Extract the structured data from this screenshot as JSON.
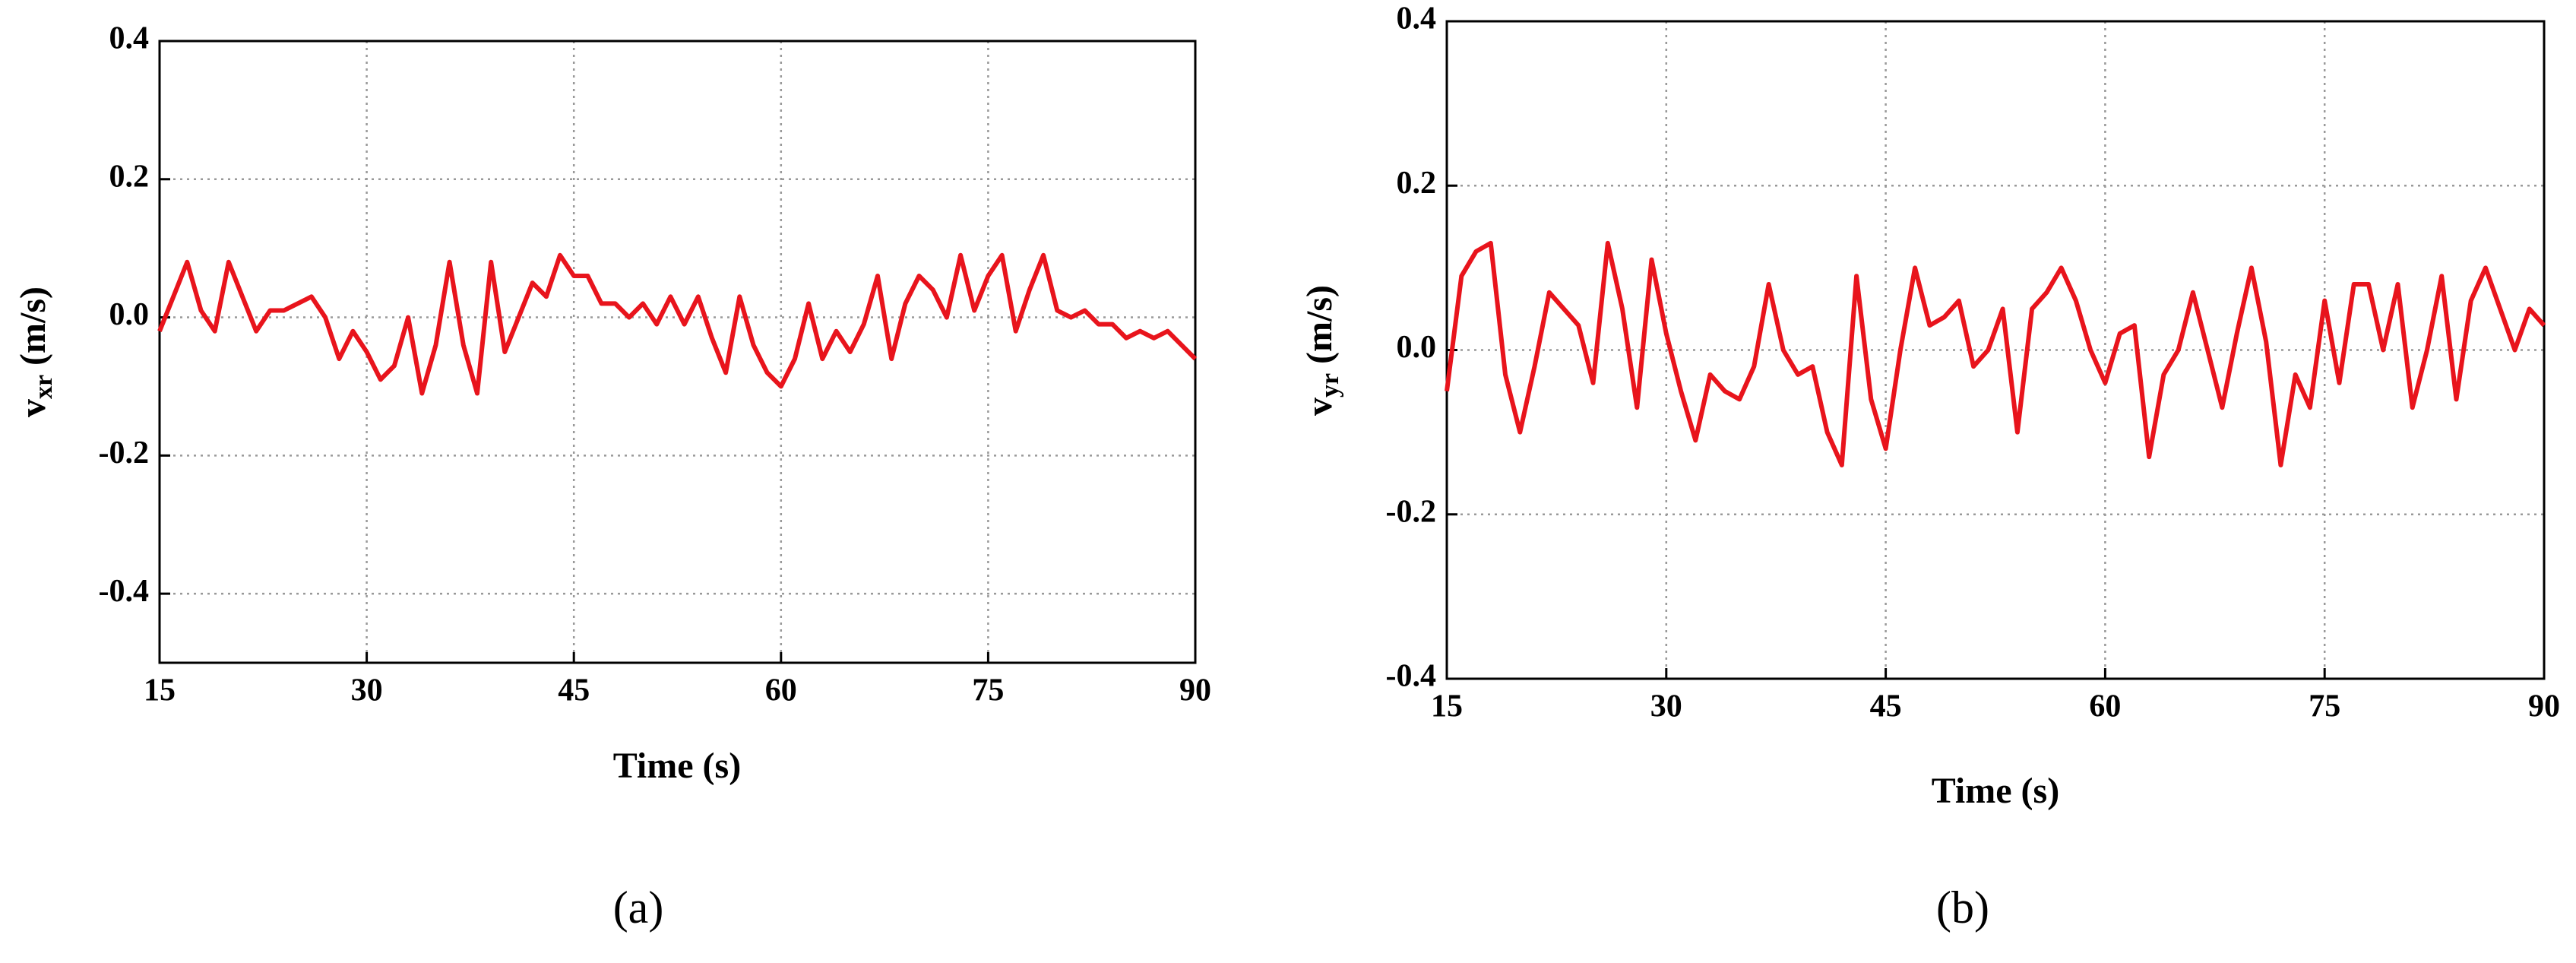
{
  "chart_data": [
    {
      "type": "line",
      "caption": "(a)",
      "xlabel": "Time (s)",
      "ylabel_main": "v",
      "ylabel_sub": "xr",
      "ylabel_unit": "(m/s)",
      "xlim": [
        15,
        90
      ],
      "xticks": [
        15,
        30,
        45,
        60,
        75,
        90
      ],
      "ylim": [
        -0.5,
        0.4
      ],
      "yticks": [
        -0.4,
        -0.2,
        {
          "value": 0,
          "label": "0.0"
        },
        0.2,
        0.4
      ],
      "grid": true,
      "x": [
        15,
        16,
        17,
        18,
        19,
        20,
        21,
        22,
        23,
        24,
        25,
        26,
        27,
        28,
        29,
        30,
        31,
        32,
        33,
        34,
        35,
        36,
        37,
        38,
        39,
        40,
        41,
        42,
        43,
        44,
        45,
        46,
        47,
        48,
        49,
        50,
        51,
        52,
        53,
        54,
        55,
        56,
        57,
        58,
        59,
        60,
        61,
        62,
        63,
        64,
        65,
        66,
        67,
        68,
        69,
        70,
        71,
        72,
        73,
        74,
        75,
        76,
        77,
        78,
        79,
        80,
        81,
        82,
        83,
        84,
        85,
        86,
        87,
        88,
        89,
        90
      ],
      "series": [
        {
          "color": "#e8141c",
          "values": [
            -0.02,
            0.03,
            0.08,
            0.01,
            -0.02,
            0.08,
            0.03,
            -0.02,
            0.01,
            0.01,
            0.02,
            0.03,
            0.0,
            -0.06,
            -0.02,
            -0.05,
            -0.09,
            -0.07,
            0.0,
            -0.11,
            -0.04,
            0.08,
            -0.04,
            -0.11,
            0.08,
            -0.05,
            0.0,
            0.05,
            0.03,
            0.09,
            0.06,
            0.06,
            0.02,
            0.02,
            0.0,
            0.02,
            -0.01,
            0.03,
            -0.01,
            0.03,
            -0.03,
            -0.08,
            0.03,
            -0.04,
            -0.08,
            -0.1,
            -0.06,
            0.02,
            -0.06,
            -0.02,
            -0.05,
            -0.01,
            0.06,
            -0.06,
            0.02,
            0.06,
            0.04,
            0.0,
            0.09,
            0.01,
            0.06,
            0.09,
            -0.02,
            0.04,
            0.09,
            0.01,
            0.0,
            0.01,
            -0.01,
            -0.01,
            -0.03,
            -0.02,
            -0.03,
            -0.02,
            -0.04,
            -0.06
          ]
        }
      ]
    },
    {
      "type": "line",
      "caption": "(b)",
      "xlabel": "Time (s)",
      "ylabel_main": "v",
      "ylabel_sub": "yr",
      "ylabel_unit": "(m/s)",
      "xlim": [
        15,
        90
      ],
      "xticks": [
        15,
        30,
        45,
        60,
        75,
        90
      ],
      "ylim": [
        -0.4,
        0.4
      ],
      "yticks": [
        -0.4,
        -0.2,
        {
          "value": 0,
          "label": "0.0"
        },
        0.2,
        0.4
      ],
      "grid": true,
      "x": [
        15,
        16,
        17,
        18,
        19,
        20,
        21,
        22,
        23,
        24,
        25,
        26,
        27,
        28,
        29,
        30,
        31,
        32,
        33,
        34,
        35,
        36,
        37,
        38,
        39,
        40,
        41,
        42,
        43,
        44,
        45,
        46,
        47,
        48,
        49,
        50,
        51,
        52,
        53,
        54,
        55,
        56,
        57,
        58,
        59,
        60,
        61,
        62,
        63,
        64,
        65,
        66,
        67,
        68,
        69,
        70,
        71,
        72,
        73,
        74,
        75,
        76,
        77,
        78,
        79,
        80,
        81,
        82,
        83,
        84,
        85,
        86,
        87,
        88,
        89,
        90
      ],
      "series": [
        {
          "color": "#e8141c",
          "values": [
            -0.05,
            0.09,
            0.12,
            0.13,
            -0.03,
            -0.1,
            -0.02,
            0.07,
            0.05,
            0.03,
            -0.04,
            0.13,
            0.05,
            -0.07,
            0.11,
            0.02,
            -0.05,
            -0.11,
            -0.03,
            -0.05,
            -0.06,
            -0.02,
            0.08,
            0.0,
            -0.03,
            -0.02,
            -0.1,
            -0.14,
            0.09,
            -0.06,
            -0.12,
            0.0,
            0.1,
            0.03,
            0.04,
            0.06,
            -0.02,
            0.0,
            0.05,
            -0.1,
            0.05,
            0.07,
            0.1,
            0.06,
            0.0,
            -0.04,
            0.02,
            0.03,
            -0.13,
            -0.03,
            0.0,
            0.07,
            0.0,
            -0.07,
            0.02,
            0.1,
            0.01,
            -0.14,
            -0.03,
            -0.07,
            0.06,
            -0.04,
            0.08,
            0.08,
            0.0,
            0.08,
            -0.07,
            0.0,
            0.09,
            -0.06,
            0.06,
            0.1,
            0.05,
            0.0,
            0.05,
            0.03
          ]
        }
      ]
    }
  ]
}
